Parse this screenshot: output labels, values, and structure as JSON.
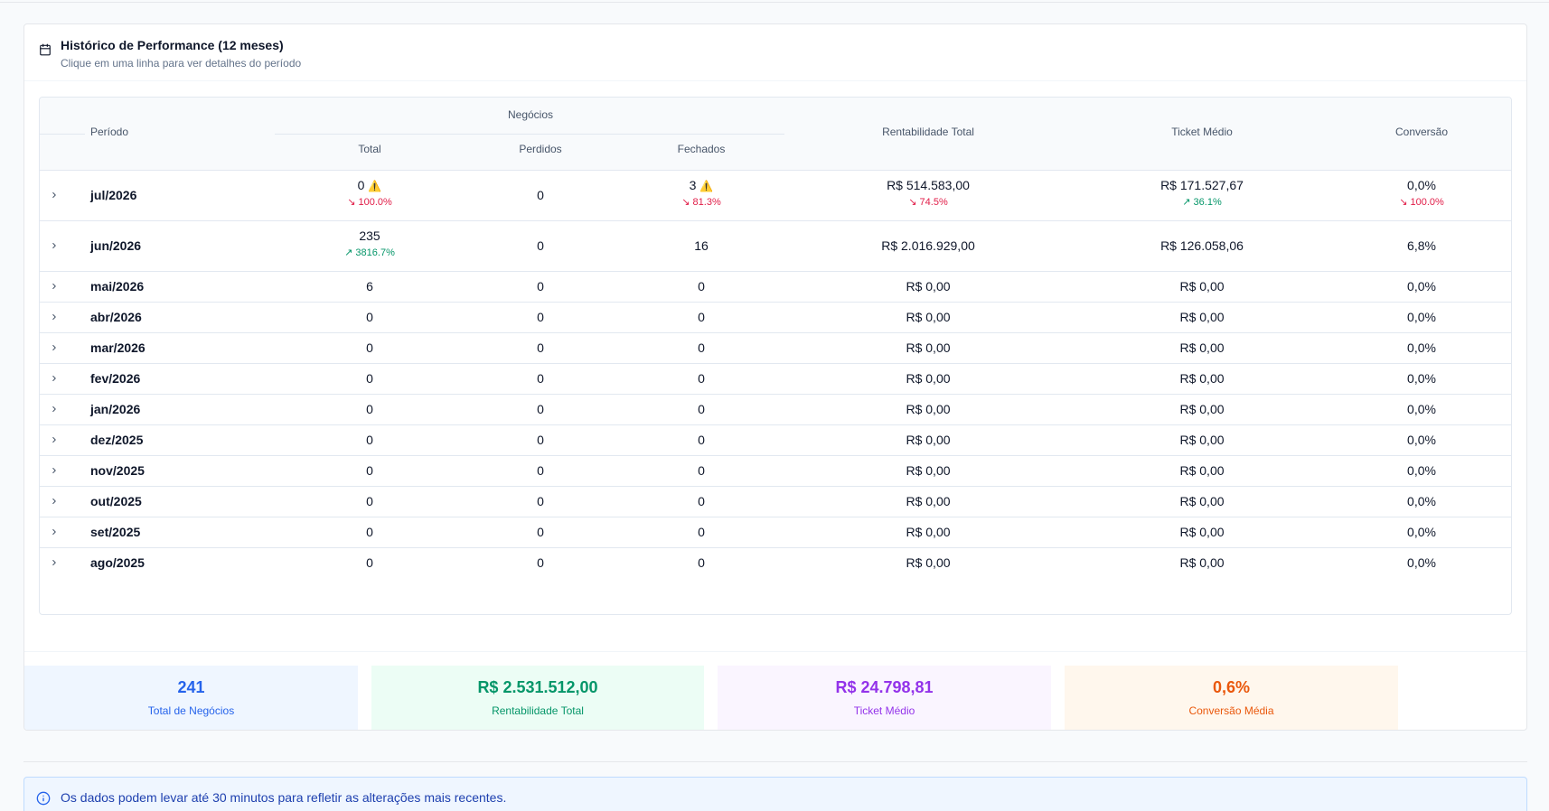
{
  "header": {
    "title": "Histórico de Performance (12 meses)",
    "subtitle": "Clique em uma linha para ver detalhes do período",
    "icon": "calendar-icon"
  },
  "table": {
    "columns": {
      "periodo": "Período",
      "negocios": "Negócios",
      "total": "Total",
      "perdidos": "Perdidos",
      "fechados": "Fechados",
      "rentabilidade": "Rentabilidade Total",
      "ticket": "Ticket Médio",
      "conversao": "Conversão"
    },
    "rows": [
      {
        "periodo": "jul/2026",
        "total": "0",
        "total_warn": "⚠️",
        "total_trend": "↘ 100.0%",
        "total_dir": "down",
        "perdidos": "0",
        "fechados": "3",
        "fechados_warn": "⚠️",
        "fechados_trend": "↘ 81.3%",
        "fechados_dir": "down",
        "rentabilidade": "R$ 514.583,00",
        "rent_trend": "↘ 74.5%",
        "rent_dir": "down",
        "ticket": "R$ 171.527,67",
        "ticket_trend": "↗ 36.1%",
        "ticket_dir": "up",
        "conversao": "0,0%",
        "conv_trend": "↘ 100.0%",
        "conv_dir": "down"
      },
      {
        "periodo": "jun/2026",
        "total": "235",
        "total_trend": "↗ 3816.7%",
        "total_dir": "up",
        "perdidos": "0",
        "fechados": "16",
        "rentabilidade": "R$ 2.016.929,00",
        "ticket": "R$ 126.058,06",
        "conversao": "6,8%"
      },
      {
        "periodo": "mai/2026",
        "total": "6",
        "perdidos": "0",
        "fechados": "0",
        "rentabilidade": "R$ 0,00",
        "ticket": "R$ 0,00",
        "conversao": "0,0%"
      },
      {
        "periodo": "abr/2026",
        "total": "0",
        "perdidos": "0",
        "fechados": "0",
        "rentabilidade": "R$ 0,00",
        "ticket": "R$ 0,00",
        "conversao": "0,0%"
      },
      {
        "periodo": "mar/2026",
        "total": "0",
        "perdidos": "0",
        "fechados": "0",
        "rentabilidade": "R$ 0,00",
        "ticket": "R$ 0,00",
        "conversao": "0,0%"
      },
      {
        "periodo": "fev/2026",
        "total": "0",
        "perdidos": "0",
        "fechados": "0",
        "rentabilidade": "R$ 0,00",
        "ticket": "R$ 0,00",
        "conversao": "0,0%"
      },
      {
        "periodo": "jan/2026",
        "total": "0",
        "perdidos": "0",
        "fechados": "0",
        "rentabilidade": "R$ 0,00",
        "ticket": "R$ 0,00",
        "conversao": "0,0%"
      },
      {
        "periodo": "dez/2025",
        "total": "0",
        "perdidos": "0",
        "fechados": "0",
        "rentabilidade": "R$ 0,00",
        "ticket": "R$ 0,00",
        "conversao": "0,0%"
      },
      {
        "periodo": "nov/2025",
        "total": "0",
        "perdidos": "0",
        "fechados": "0",
        "rentabilidade": "R$ 0,00",
        "ticket": "R$ 0,00",
        "conversao": "0,0%"
      },
      {
        "periodo": "out/2025",
        "total": "0",
        "perdidos": "0",
        "fechados": "0",
        "rentabilidade": "R$ 0,00",
        "ticket": "R$ 0,00",
        "conversao": "0,0%"
      },
      {
        "periodo": "set/2025",
        "total": "0",
        "perdidos": "0",
        "fechados": "0",
        "rentabilidade": "R$ 0,00",
        "ticket": "R$ 0,00",
        "conversao": "0,0%"
      },
      {
        "periodo": "ago/2025",
        "total": "0",
        "perdidos": "0",
        "fechados": "0",
        "rentabilidade": "R$ 0,00",
        "ticket": "R$ 0,00",
        "conversao": "0,0%"
      }
    ]
  },
  "stats": [
    {
      "value": "241",
      "label": "Total de Negócios",
      "color": "#2563eb",
      "bg": "#eff6ff"
    },
    {
      "value": "R$ 2.531.512,00",
      "label": "Rentabilidade Total",
      "color": "#059669",
      "bg": "#ecfdf5"
    },
    {
      "value": "R$ 24.798,81",
      "label": "Ticket Médio",
      "color": "#9333ea",
      "bg": "#faf5ff"
    },
    {
      "value": "0,6%",
      "label": "Conversão Média",
      "color": "#ea580c",
      "bg": "#fff7ed"
    }
  ],
  "alert": {
    "text": "Os dados podem levar até 30 minutos para refletir as alterações mais recentes.",
    "icon": "info-icon"
  }
}
